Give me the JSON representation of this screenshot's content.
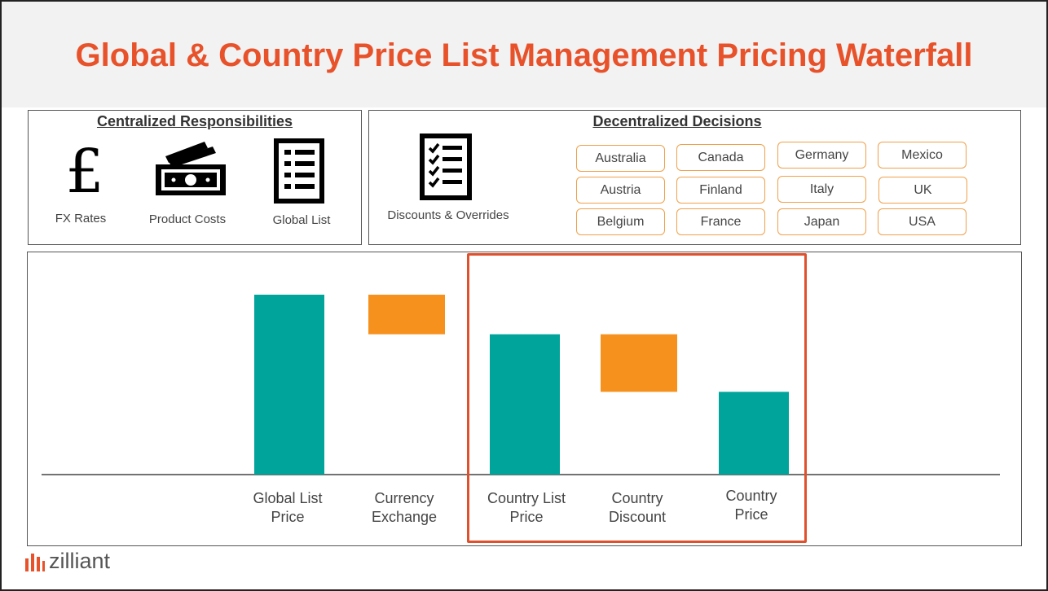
{
  "title": "Global & Country Price List Management Pricing Waterfall",
  "centralized": {
    "heading": "Centralized Responsibilities",
    "items": [
      {
        "label": "FX Rates",
        "icon": "pound-sign-icon"
      },
      {
        "label": "Product Costs",
        "icon": "money-stack-icon"
      },
      {
        "label": "Global List",
        "icon": "list-icon"
      }
    ]
  },
  "decentralized": {
    "heading": "Decentralized Decisions",
    "item": {
      "label": "Discounts & Overrides",
      "icon": "checklist-icon"
    },
    "countries": [
      "Australia",
      "Canada",
      "Germany",
      "Mexico",
      "Austria",
      "Finland",
      "Italy",
      "UK",
      "Belgium",
      "France",
      "Japan",
      "USA"
    ]
  },
  "chart_data": {
    "type": "bar",
    "subtype": "waterfall",
    "categories": [
      "Global List Price",
      "Currency Exchange",
      "Country List Price",
      "Country Discount",
      "Country Price"
    ],
    "category_lines": [
      [
        "Global List",
        "Price"
      ],
      [
        "Currency",
        "Exchange"
      ],
      [
        "Country List",
        "Price"
      ],
      [
        "Country",
        "Discount"
      ],
      [
        "Country",
        "Price"
      ]
    ],
    "bars": [
      {
        "kind": "total",
        "start": 0,
        "end": 100
      },
      {
        "kind": "decrease",
        "start": 100,
        "end": 78
      },
      {
        "kind": "total",
        "start": 0,
        "end": 78
      },
      {
        "kind": "decrease",
        "start": 78,
        "end": 46
      },
      {
        "kind": "total",
        "start": 0,
        "end": 46
      }
    ],
    "ylim": [
      0,
      100
    ],
    "grid": false,
    "highlighted_categories": [
      "Country List Price",
      "Country Discount",
      "Country Price"
    ],
    "colors": {
      "total": "#00a49a",
      "decrease": "#f7911e",
      "highlight": "#e0502c"
    }
  },
  "brand": {
    "name": "zilliant",
    "color": "#e8522b"
  }
}
